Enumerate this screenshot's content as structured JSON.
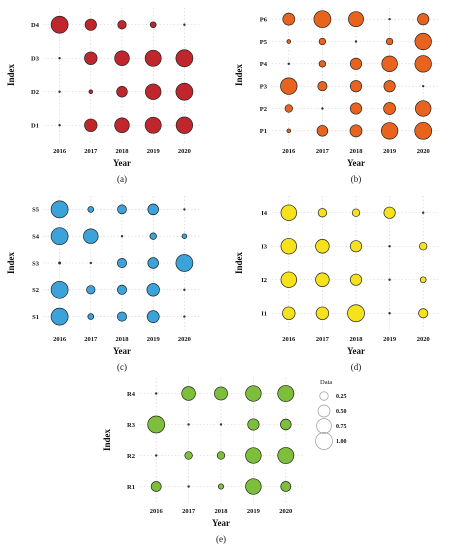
{
  "chart_data": [
    {
      "type": "scatter",
      "panel": "(a)",
      "caption": "(a)",
      "xlabel": "Year",
      "ylabel": "Index",
      "x": [
        "2016",
        "2017",
        "2018",
        "2019",
        "2020"
      ],
      "y_categories": [
        "D1",
        "D2",
        "D3",
        "D4"
      ],
      "color": "#c0272d",
      "size_values": {
        "D4": [
          1.0,
          0.45,
          0.25,
          0.12,
          0.02
        ],
        "D3": [
          0.02,
          0.55,
          0.75,
          0.9,
          1.0
        ],
        "D2": [
          0.02,
          0.05,
          0.4,
          0.85,
          1.0
        ],
        "D1": [
          0.02,
          0.55,
          0.75,
          0.9,
          0.95
        ]
      }
    },
    {
      "type": "scatter",
      "panel": "(b)",
      "caption": "(b)",
      "xlabel": "Year",
      "ylabel": "Index",
      "x": [
        "2016",
        "2017",
        "2018",
        "2019",
        "2020"
      ],
      "y_categories": [
        "P1",
        "P2",
        "P3",
        "P4",
        "P5",
        "P6"
      ],
      "color": "#e8641e",
      "size_values": {
        "P6": [
          0.5,
          1.0,
          0.8,
          0.02,
          0.45
        ],
        "P5": [
          0.05,
          0.15,
          0.02,
          0.15,
          0.95
        ],
        "P4": [
          0.02,
          0.15,
          0.45,
          0.85,
          0.95
        ],
        "P3": [
          0.95,
          0.3,
          0.45,
          0.45,
          0.02
        ],
        "P2": [
          0.2,
          0.02,
          0.45,
          0.5,
          0.85
        ],
        "P1": [
          0.05,
          0.4,
          0.5,
          0.95,
          1.0
        ]
      }
    },
    {
      "type": "scatter",
      "panel": "(c)",
      "caption": "(c)",
      "xlabel": "Year",
      "ylabel": "Index",
      "x": [
        "2016",
        "2017",
        "2018",
        "2019",
        "2020"
      ],
      "y_categories": [
        "S1",
        "S2",
        "S3",
        "S4",
        "S5"
      ],
      "color": "#3ba3d9",
      "size_values": {
        "S5": [
          1.0,
          0.12,
          0.28,
          0.4,
          0.02
        ],
        "S4": [
          1.0,
          0.75,
          0.02,
          0.15,
          0.08
        ],
        "S3": [
          0.03,
          0.02,
          0.3,
          0.4,
          1.0
        ],
        "S2": [
          1.0,
          0.25,
          0.3,
          0.55,
          0.02
        ],
        "S1": [
          1.0,
          0.12,
          0.3,
          0.5,
          0.02
        ]
      }
    },
    {
      "type": "scatter",
      "panel": "(d)",
      "caption": "(d)",
      "xlabel": "Year",
      "ylabel": "Index",
      "x": [
        "2016",
        "2017",
        "2018",
        "2019",
        "2020"
      ],
      "y_categories": [
        "I1",
        "I2",
        "I3",
        "I4"
      ],
      "color": "#f5e21c",
      "size_values": {
        "I4": [
          0.85,
          0.25,
          0.2,
          0.45,
          0.02
        ],
        "I3": [
          0.85,
          0.65,
          0.45,
          0.02,
          0.2
        ],
        "I2": [
          0.85,
          0.65,
          0.45,
          0.02,
          0.12
        ],
        "I1": [
          0.55,
          0.55,
          1.0,
          0.02,
          0.3
        ]
      }
    },
    {
      "type": "scatter",
      "panel": "(e)",
      "caption": "(e)",
      "xlabel": "Year",
      "ylabel": "Index",
      "x": [
        "2016",
        "2017",
        "2018",
        "2019",
        "2020"
      ],
      "y_categories": [
        "R1",
        "R2",
        "R3",
        "R4"
      ],
      "color": "#7dbf3a",
      "size_values": {
        "R4": [
          0.02,
          0.65,
          0.6,
          0.85,
          0.9
        ],
        "R3": [
          1.0,
          0.02,
          0.02,
          0.45,
          0.4
        ],
        "R2": [
          0.02,
          0.2,
          0.2,
          0.85,
          0.9
        ],
        "R1": [
          0.35,
          0.02,
          0.1,
          0.85,
          0.35
        ]
      },
      "legend": {
        "title": "Data",
        "entries": [
          {
            "label": "0.25",
            "value": 0.25
          },
          {
            "label": "0.50",
            "value": 0.5
          },
          {
            "label": "0.75",
            "value": 0.75
          },
          {
            "label": "1.00",
            "value": 1.0
          }
        ]
      }
    }
  ]
}
